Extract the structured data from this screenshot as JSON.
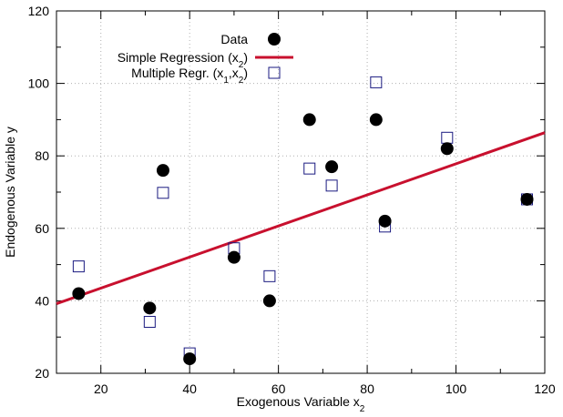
{
  "chart_data": {
    "type": "scatter",
    "title": "",
    "xlabel": "Exogenous Variable x",
    "xlabel_sub": "2",
    "ylabel": "Endogenous Variable y",
    "xlim": [
      10,
      120
    ],
    "ylim": [
      20,
      120
    ],
    "xticks": [
      20,
      40,
      60,
      80,
      100,
      120
    ],
    "yticks": [
      20,
      40,
      60,
      80,
      100,
      120
    ],
    "grid": true,
    "legend_position": "top-center",
    "series": [
      {
        "name": "Data",
        "marker": "filled-circle",
        "color": "#000000",
        "x": [
          15,
          31,
          34,
          40,
          50,
          58,
          67,
          72,
          82,
          84,
          98,
          116
        ],
        "y": [
          42,
          38,
          76,
          24,
          52,
          40,
          90,
          77,
          90,
          62,
          82,
          68
        ]
      },
      {
        "name": "Simple Regression (x",
        "name_sub": "2",
        "name_suffix": ")",
        "marker": "line",
        "color": "#c8102e",
        "x": [
          10,
          120
        ],
        "y": [
          39.2,
          86.4
        ]
      },
      {
        "name": "Multiple Regr. (x",
        "name_sub1": "1",
        "name_mid": ",x",
        "name_sub2": "2",
        "name_suffix": ")",
        "marker": "open-square",
        "color": "#1a1a80",
        "x": [
          15,
          31,
          34,
          40,
          50,
          58,
          67,
          72,
          82,
          84,
          98,
          116
        ],
        "y": [
          49.5,
          34.2,
          69.8,
          25.5,
          54.5,
          46.8,
          76.5,
          71.8,
          100.3,
          60.5,
          85,
          68
        ]
      }
    ]
  }
}
